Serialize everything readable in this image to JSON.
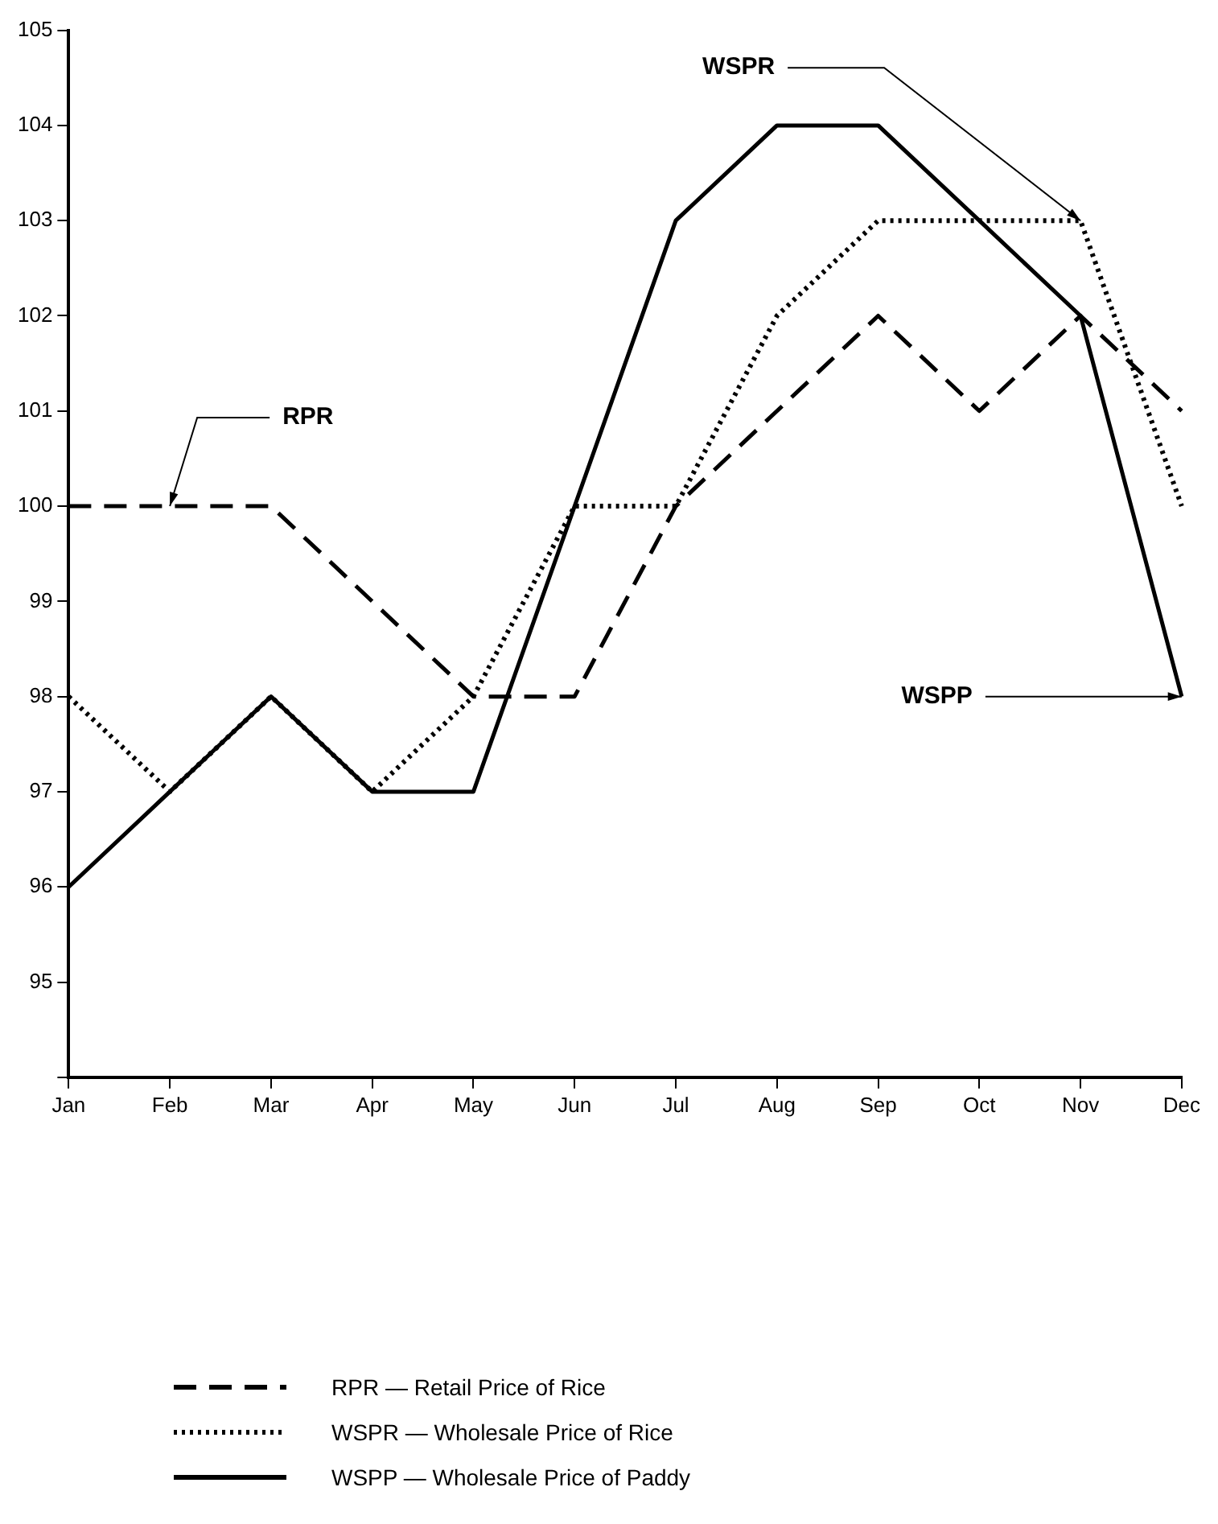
{
  "chart_data": {
    "type": "line",
    "categories": [
      "Jan",
      "Feb",
      "Mar",
      "Apr",
      "May",
      "Jun",
      "Jul",
      "Aug",
      "Sep",
      "Oct",
      "Nov",
      "Dec"
    ],
    "series": [
      {
        "name": "RPR — Retail Price of Rice",
        "color": "#000000",
        "line_style": "dashed",
        "values": [
          100,
          100,
          100,
          99,
          98,
          98,
          100,
          101,
          102,
          101,
          102,
          101
        ]
      },
      {
        "name": "WSPR — Wholesale Price of Rice",
        "color": "#000000",
        "line_style": "dotted",
        "values": [
          98,
          97,
          98,
          97,
          98,
          100,
          100,
          102,
          103,
          103,
          103,
          100
        ]
      },
      {
        "name": "WSPP — Wholesale Price of Paddy",
        "color": "#000000",
        "line_style": "solid",
        "values": [
          96,
          97,
          98,
          97,
          97,
          100,
          103,
          104,
          104,
          103,
          102,
          98
        ]
      }
    ],
    "ylim": [
      94,
      105
    ],
    "yticks": [
      {
        "value": 94,
        "label": null
      },
      95,
      96,
      97,
      98,
      99,
      100,
      101,
      102,
      103,
      104,
      105
    ],
    "grid": false,
    "legend": "bottom",
    "marker": "none",
    "annotations": [
      {
        "text": "RPR",
        "x": "Feb",
        "y": 100
      },
      {
        "text": "WSPR",
        "x": "Nov",
        "y": 103
      },
      {
        "text": "WSPP",
        "x": "Dec",
        "y": 98
      }
    ]
  }
}
